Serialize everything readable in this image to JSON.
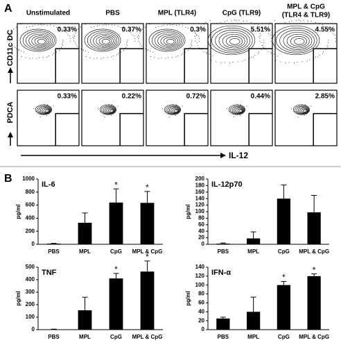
{
  "panel_a": {
    "label": "A",
    "headers": [
      [
        "Unstimulated"
      ],
      [
        "PBS"
      ],
      [
        "MPL (TLR4)"
      ],
      [
        "CpG (TLR9)"
      ],
      [
        "MPL & CpG",
        "(TLR4 & TLR9)"
      ]
    ],
    "row_labels": [
      "CD11c DC",
      "PDCA"
    ],
    "x_axis_label": "IL-12",
    "gates": [
      [
        "0.33%",
        "0.37%",
        "0.3%",
        "5.51%",
        "4.55%"
      ],
      [
        "0.33%",
        "0.22%",
        "0.72%",
        "0.44%",
        "2.85%"
      ]
    ]
  },
  "panel_b_label": "B",
  "chart_data": [
    {
      "type": "bar",
      "title": "IL-6",
      "y_label": "pg/ml",
      "categories": [
        "PBS",
        "MPL",
        "CpG",
        "MPL & CpG"
      ],
      "values": [
        10,
        330,
        640,
        635
      ],
      "errors": [
        5,
        150,
        210,
        175
      ],
      "significance": [
        null,
        null,
        "*",
        "*"
      ],
      "color": "#000000",
      "ylim": [
        0,
        1000
      ],
      "yticks": [
        0,
        200,
        400,
        600,
        800,
        1000
      ]
    },
    {
      "type": "bar",
      "title": "IL-12p70",
      "y_label": "pg/ml",
      "categories": [
        "PBS",
        "MPL",
        "CpG",
        "MPL & CpG"
      ],
      "values": [
        2,
        18,
        140,
        98
      ],
      "errors": [
        2,
        20,
        42,
        52
      ],
      "significance": [
        null,
        null,
        null,
        null
      ],
      "color": "#000000",
      "ylim": [
        0,
        200
      ],
      "yticks": [
        0,
        20,
        40,
        60,
        80,
        100,
        120,
        140,
        160,
        180,
        200
      ]
    },
    {
      "type": "bar",
      "title": "TNF",
      "y_label": "pg/ml",
      "categories": [
        "PBS",
        "MPL",
        "CpG",
        "MPL & CpG"
      ],
      "values": [
        2,
        155,
        410,
        465
      ],
      "errors": [
        2,
        105,
        40,
        85
      ],
      "significance": [
        null,
        null,
        "*",
        "*"
      ],
      "color": "#000000",
      "ylim": [
        0,
        500
      ],
      "yticks": [
        0,
        100,
        200,
        300,
        400,
        500
      ]
    },
    {
      "type": "bar",
      "title": "IFN-α",
      "y_label": "pg/ml",
      "categories": [
        "PBS",
        "MPL",
        "CpG",
        "MPL & CpG"
      ],
      "values": [
        25,
        40,
        100,
        120
      ],
      "errors": [
        3,
        33,
        8,
        5
      ],
      "significance": [
        null,
        null,
        "*",
        "*"
      ],
      "color": "#000000",
      "ylim": [
        0,
        140
      ],
      "yticks": [
        0,
        20,
        40,
        60,
        80,
        100,
        120,
        140
      ]
    }
  ]
}
